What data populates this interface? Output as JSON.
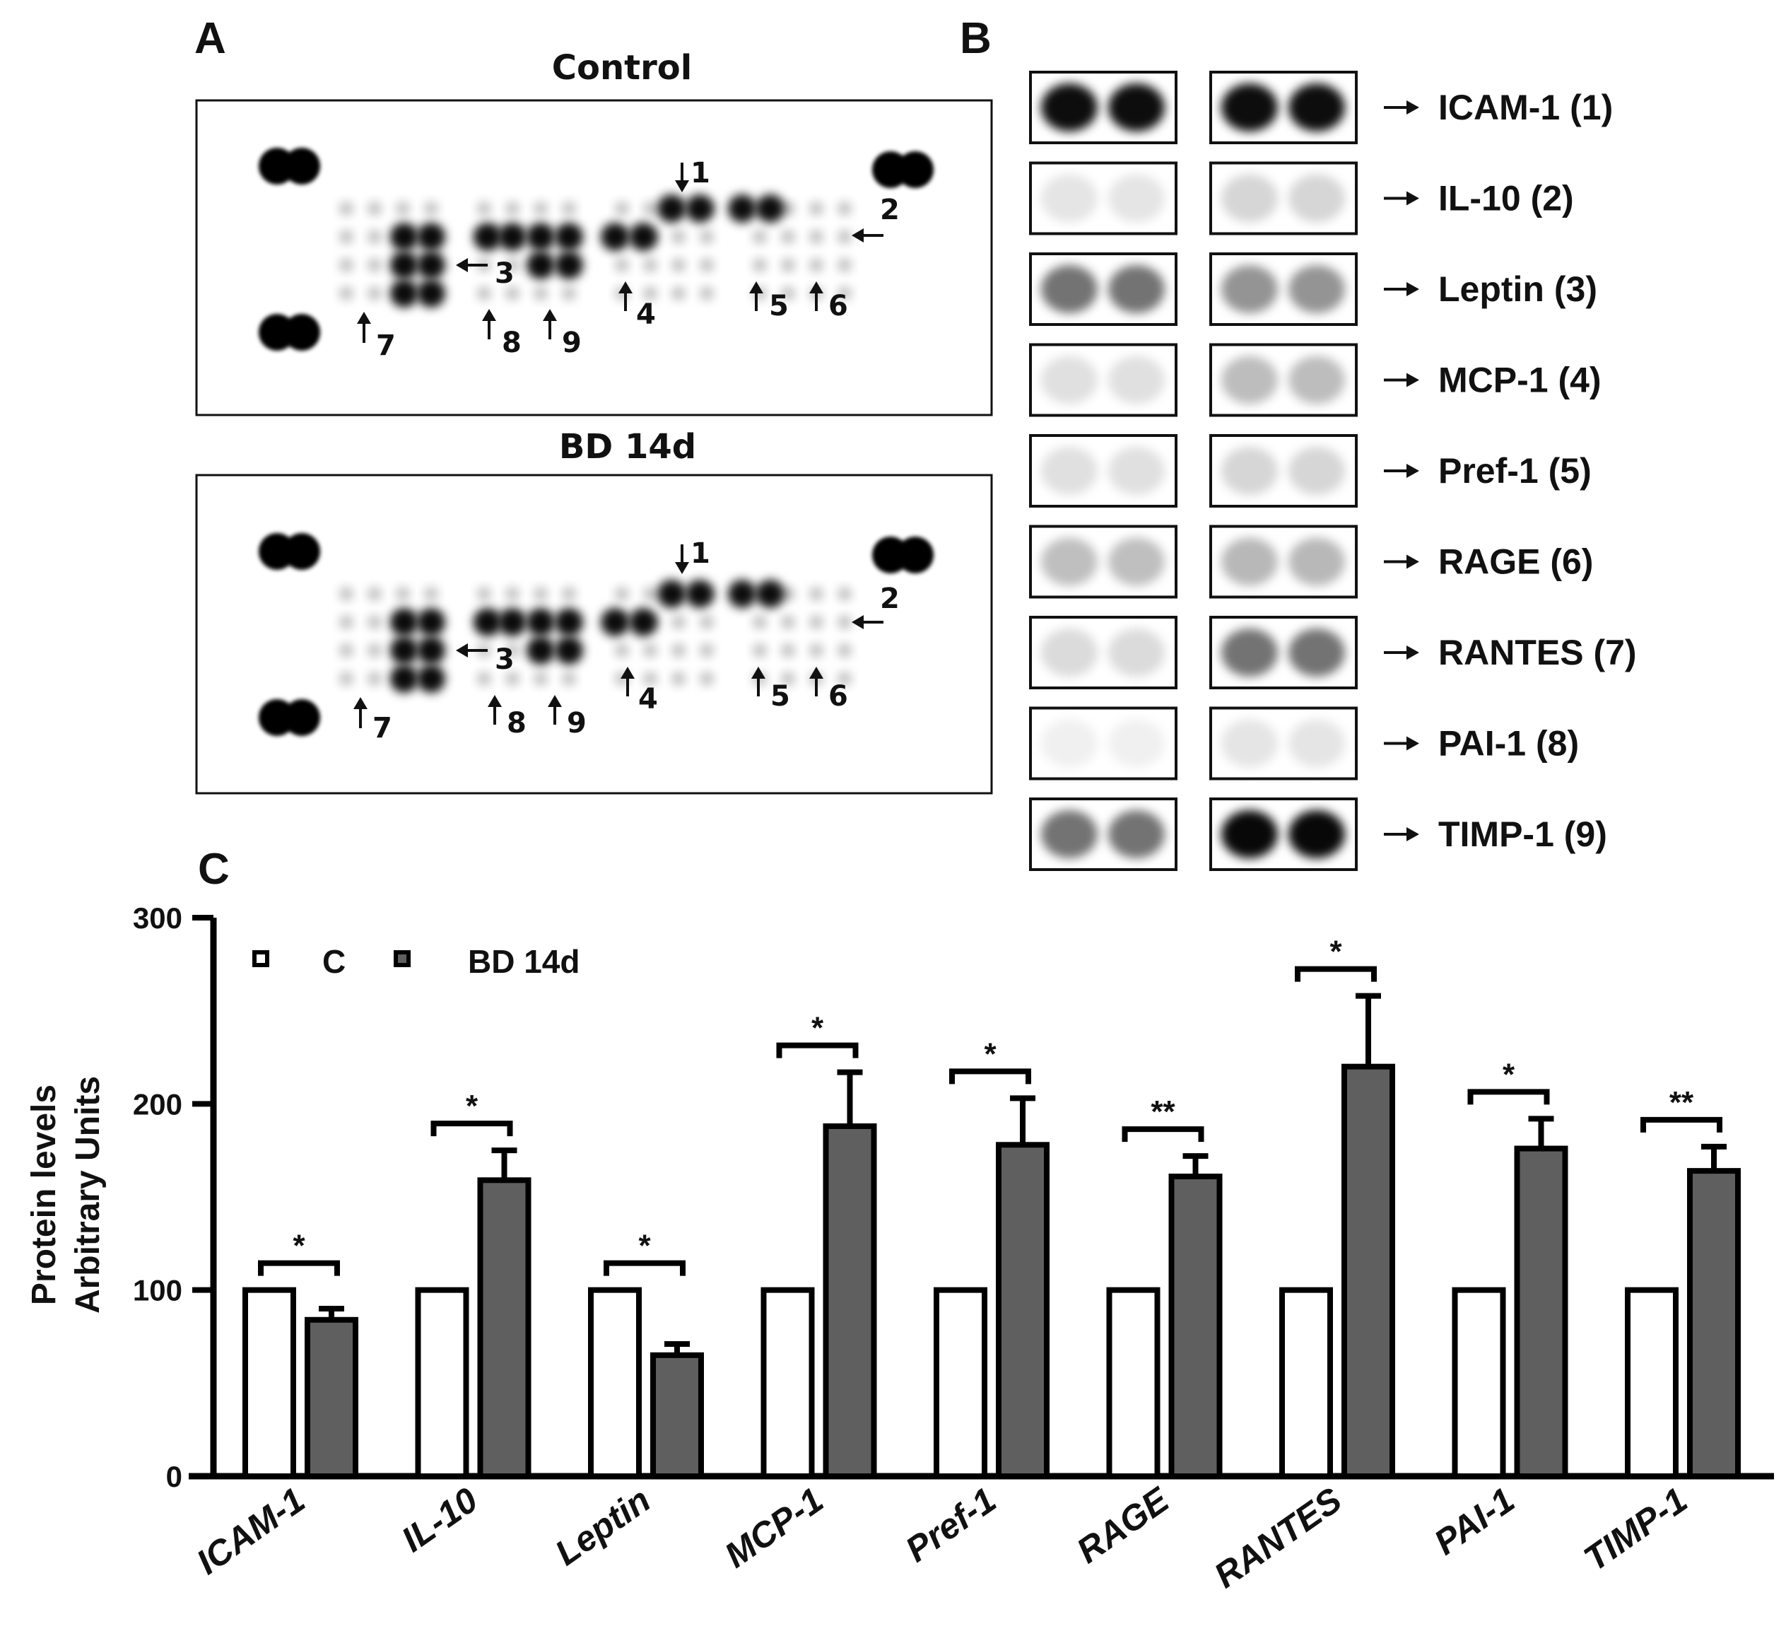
{
  "panels": {
    "a": {
      "letter": "A",
      "membranes": [
        {
          "title": "Control"
        },
        {
          "title": "BD 14d"
        }
      ],
      "arrow_labels": [
        "1",
        "2",
        "3",
        "4",
        "5",
        "6",
        "7",
        "8",
        "9"
      ]
    },
    "b": {
      "letter": "B",
      "rows": [
        {
          "label": "ICAM-1 (1)",
          "left_intensity": 0.95,
          "right_intensity": 0.95
        },
        {
          "label": "IL-10 (2)",
          "left_intensity": 0.1,
          "right_intensity": 0.16
        },
        {
          "label": "Leptin (3)",
          "left_intensity": 0.55,
          "right_intensity": 0.42
        },
        {
          "label": "MCP-1 (4)",
          "left_intensity": 0.12,
          "right_intensity": 0.26
        },
        {
          "label": "Pref-1 (5)",
          "left_intensity": 0.12,
          "right_intensity": 0.16
        },
        {
          "label": "RAGE (6)",
          "left_intensity": 0.25,
          "right_intensity": 0.28
        },
        {
          "label": "RANTES (7)",
          "left_intensity": 0.14,
          "right_intensity": 0.55
        },
        {
          "label": "PAI-1 (8)",
          "left_intensity": 0.06,
          "right_intensity": 0.1
        },
        {
          "label": "TIMP-1 (9)",
          "left_intensity": 0.55,
          "right_intensity": 0.97
        }
      ]
    },
    "c": {
      "letter": "C"
    }
  },
  "colors": {
    "control_fill": "#ffffff",
    "treatment_fill": "#5f5f5f",
    "stroke": "#000000"
  },
  "chart_data": {
    "type": "bar",
    "categories": [
      "ICAM-1",
      "IL-10",
      "Leptin",
      "MCP-1",
      "Pref-1",
      "RAGE",
      "RANTES",
      "PAI-1",
      "TIMP-1"
    ],
    "series": [
      {
        "name": "C",
        "values": [
          100,
          100,
          100,
          100,
          100,
          100,
          100,
          100,
          100
        ]
      },
      {
        "name": "BD 14d",
        "values": [
          84,
          159,
          65,
          188,
          178,
          161,
          220,
          176,
          164
        ],
        "errors": [
          6,
          16,
          6,
          29,
          25,
          11,
          38,
          16,
          13
        ]
      }
    ],
    "significance": [
      "*",
      "*",
      "*",
      "*",
      "*",
      "**",
      "*",
      "*",
      "**"
    ],
    "ylabel_lines": [
      "Protein levels",
      "Arbitrary Units"
    ],
    "xlabel": "",
    "ylim": [
      0,
      300
    ],
    "yticks": [
      0,
      100,
      200,
      300
    ],
    "legend": "top-left",
    "grid": false
  }
}
